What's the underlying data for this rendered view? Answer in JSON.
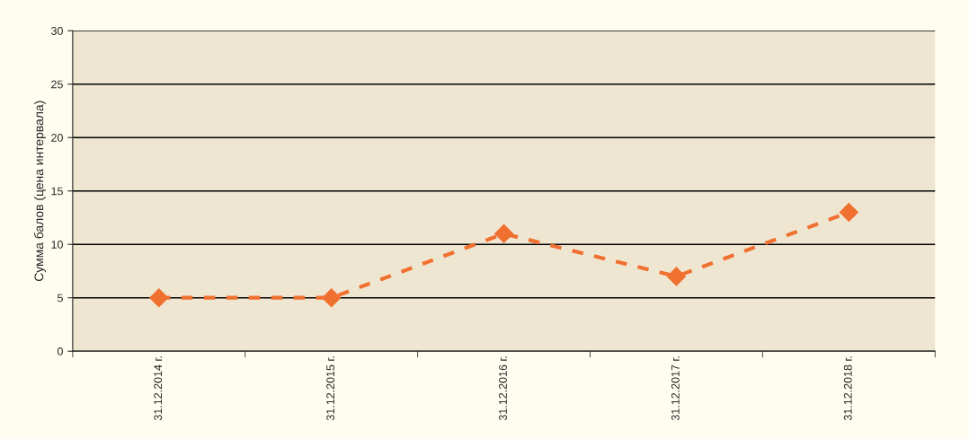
{
  "chart_data": {
    "type": "line",
    "ylabel": "Сумма балов (цена интервала)",
    "categories": [
      "31.12.2014 г.",
      "31.12.2015 г.",
      "31.12.2016 г.",
      "31.12.2017 г.",
      "31.12.2018 г."
    ],
    "series": [
      {
        "color": "#f07030",
        "values": [
          5,
          5,
          11,
          7,
          13
        ]
      }
    ],
    "ylim": [
      0,
      30
    ],
    "yticks": [
      0,
      5,
      10,
      15,
      20,
      25,
      30
    ],
    "grid": "y",
    "marker": "diamond",
    "line_style": "dashed",
    "legend": false
  }
}
